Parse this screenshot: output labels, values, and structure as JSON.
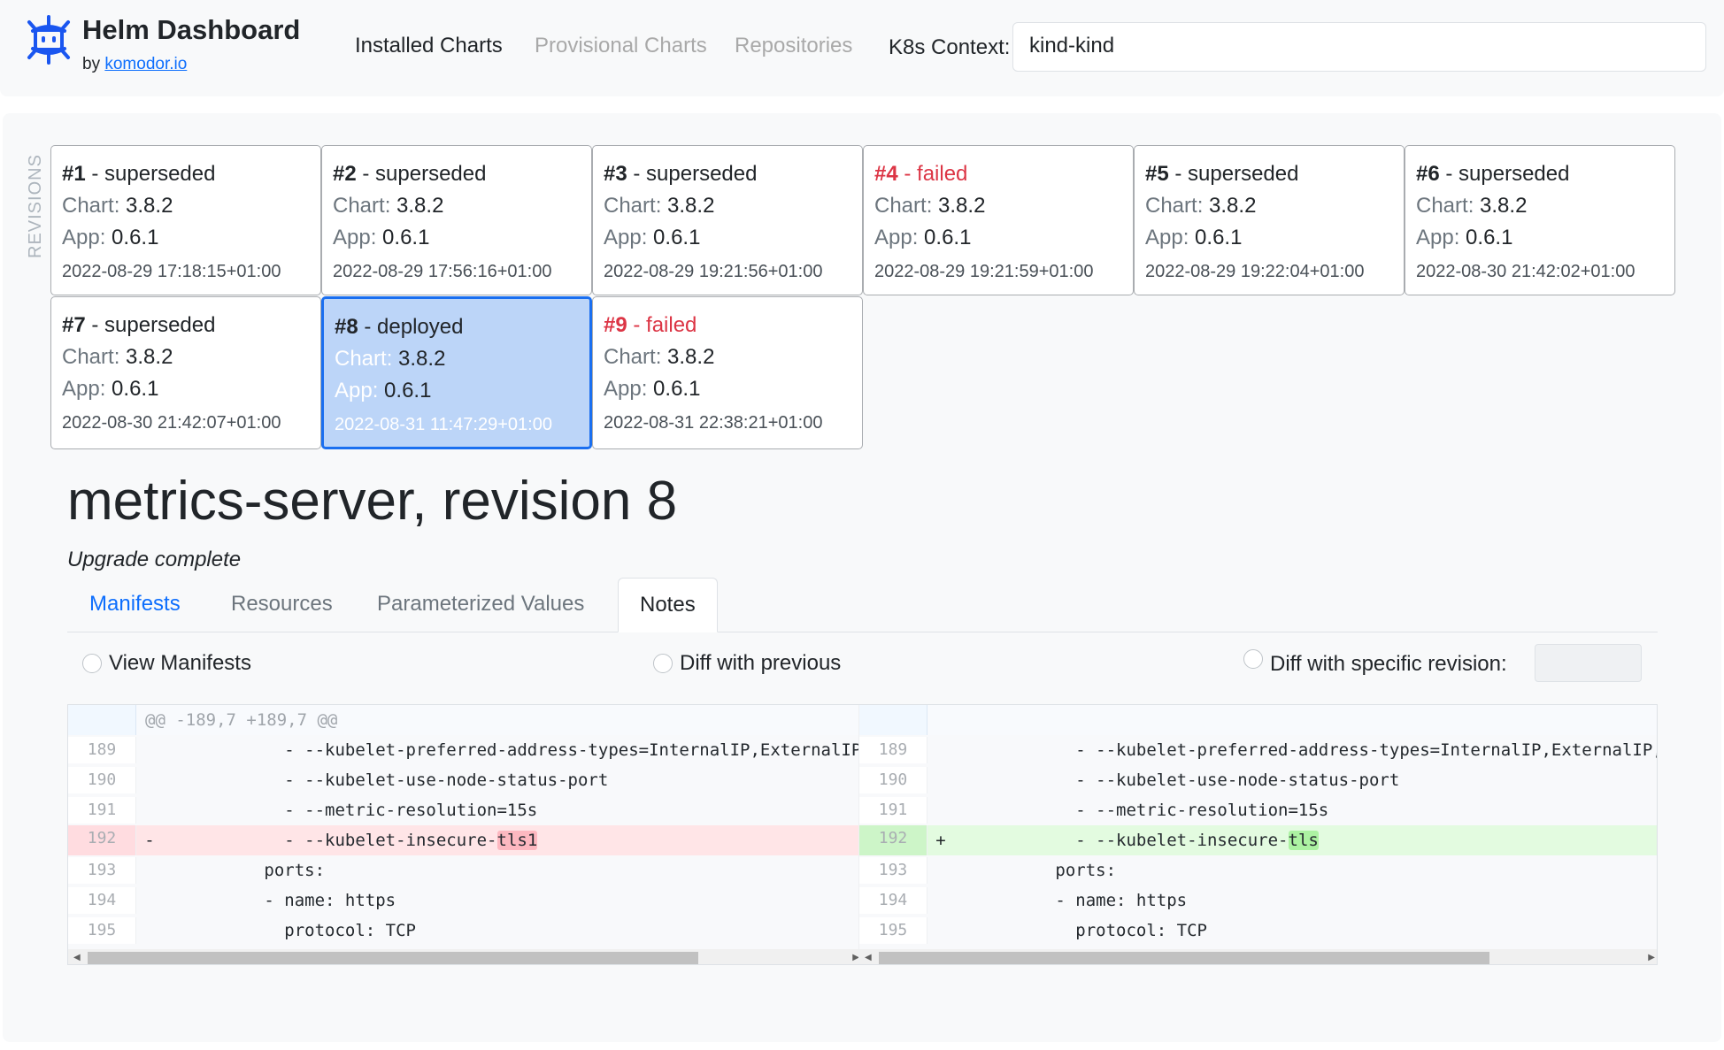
{
  "header": {
    "title": "Helm Dashboard",
    "by": "by",
    "by_link": "komodor.io",
    "nav": [
      "Installed Charts",
      "Provisional Charts",
      "Repositories"
    ],
    "context_label": "K8s Context:",
    "context_value": "kind-kind"
  },
  "revisions_label": "REVISIONS",
  "revisions": [
    {
      "num": "#1",
      "status": "superseded",
      "chart": "3.8.2",
      "app": "0.6.1",
      "date": "2022-08-29 17:18:15+01:00"
    },
    {
      "num": "#2",
      "status": "superseded",
      "chart": "3.8.2",
      "app": "0.6.1",
      "date": "2022-08-29 17:56:16+01:00"
    },
    {
      "num": "#3",
      "status": "superseded",
      "chart": "3.8.2",
      "app": "0.6.1",
      "date": "2022-08-29 19:21:56+01:00"
    },
    {
      "num": "#4",
      "status": "failed",
      "chart": "3.8.2",
      "app": "0.6.1",
      "date": "2022-08-29 19:21:59+01:00"
    },
    {
      "num": "#5",
      "status": "superseded",
      "chart": "3.8.2",
      "app": "0.6.1",
      "date": "2022-08-29 19:22:04+01:00"
    },
    {
      "num": "#6",
      "status": "superseded",
      "chart": "3.8.2",
      "app": "0.6.1",
      "date": "2022-08-30 21:42:02+01:00"
    },
    {
      "num": "#7",
      "status": "superseded",
      "chart": "3.8.2",
      "app": "0.6.1",
      "date": "2022-08-30 21:42:07+01:00"
    },
    {
      "num": "#8",
      "status": "deployed",
      "chart": "3.8.2",
      "app": "0.6.1",
      "date": "2022-08-31 11:47:29+01:00",
      "selected": true
    },
    {
      "num": "#9",
      "status": "failed",
      "chart": "3.8.2",
      "app": "0.6.1",
      "date": "2022-08-31 22:38:21+01:00"
    }
  ],
  "card_labels": {
    "chart": "Chart:",
    "app": "App:",
    "sep": " - "
  },
  "colors": {
    "failed": "#dc3545",
    "accent": "#0d6efd",
    "selected_bg": "#bcd5f8"
  },
  "release": {
    "title": "metrics-server, revision 8",
    "subtitle": "Upgrade complete"
  },
  "tabs": [
    "Manifests",
    "Resources",
    "Parameterized Values",
    "Notes"
  ],
  "diff_modes": [
    "View Manifests",
    "Diff with previous",
    "Diff with specific revision:"
  ],
  "diff": {
    "hunk": "@@ -189,7 +189,7 @@",
    "rows": [
      {
        "ln": "189",
        "code": "            - --kubelet-preferred-address-types=InternalIP,ExternalIP,Hostname"
      },
      {
        "ln": "190",
        "code": "            - --kubelet-use-node-status-port"
      },
      {
        "ln": "191",
        "code": "            - --metric-resolution=15s"
      },
      {
        "ln": "192",
        "type": "change",
        "left_code": "            - --kubelet-insecure-",
        "left_hl": "tls1",
        "right_code": "            - --kubelet-insecure-",
        "right_hl": "tls",
        "left_mark": "-",
        "right_mark": "+"
      },
      {
        "ln": "193",
        "code": "          ports:"
      },
      {
        "ln": "194",
        "code": "          - name: https"
      },
      {
        "ln": "195",
        "code": "            protocol: TCP"
      }
    ]
  }
}
